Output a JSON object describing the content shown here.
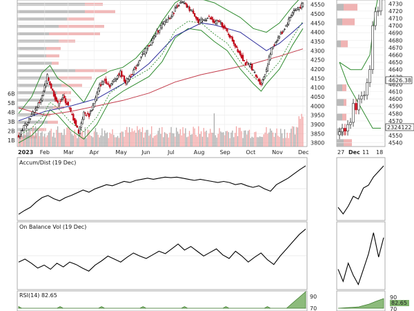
{
  "chart_data": [
    {
      "type": "candlestick",
      "panel": "main-price",
      "x_months": [
        "2023",
        "Feb",
        "Mar",
        "Apr",
        "May",
        "Jun",
        "Jul",
        "Aug",
        "Sep",
        "Oct",
        "Nov",
        "Dec"
      ],
      "y_ticks": [
        3800,
        3850,
        3900,
        3950,
        4000,
        4050,
        4100,
        4150,
        4200,
        4250,
        4300,
        4350,
        4400,
        4450,
        4500,
        4550
      ],
      "ylim": [
        3780,
        4575
      ],
      "volume_ticks": [
        "1B",
        "2B",
        "3B",
        "4B",
        "5B",
        "6B"
      ],
      "close_path": [
        [
          0,
          3840
        ],
        [
          6,
          3910
        ],
        [
          12,
          3970
        ],
        [
          18,
          4050
        ],
        [
          22,
          4160
        ],
        [
          26,
          4080
        ],
        [
          30,
          4010
        ],
        [
          34,
          4050
        ],
        [
          38,
          4000
        ],
        [
          42,
          3930
        ],
        [
          46,
          3860
        ],
        [
          50,
          3960
        ],
        [
          54,
          3950
        ],
        [
          58,
          4020
        ],
        [
          62,
          4110
        ],
        [
          66,
          4140
        ],
        [
          70,
          4110
        ],
        [
          74,
          4150
        ],
        [
          78,
          4180
        ],
        [
          82,
          4130
        ],
        [
          86,
          4170
        ],
        [
          90,
          4210
        ],
        [
          94,
          4270
        ],
        [
          98,
          4310
        ],
        [
          102,
          4350
        ],
        [
          106,
          4400
        ],
        [
          110,
          4440
        ],
        [
          114,
          4470
        ],
        [
          118,
          4500
        ],
        [
          122,
          4550
        ],
        [
          126,
          4560
        ],
        [
          130,
          4530
        ],
        [
          134,
          4510
        ],
        [
          138,
          4450
        ],
        [
          142,
          4470
        ],
        [
          146,
          4480
        ],
        [
          150,
          4450
        ],
        [
          154,
          4460
        ],
        [
          158,
          4420
        ],
        [
          162,
          4380
        ],
        [
          166,
          4330
        ],
        [
          170,
          4280
        ],
        [
          174,
          4230
        ],
        [
          178,
          4220
        ],
        [
          182,
          4160
        ],
        [
          186,
          4120
        ],
        [
          190,
          4200
        ],
        [
          194,
          4310
        ],
        [
          198,
          4360
        ],
        [
          202,
          4400
        ],
        [
          206,
          4450
        ],
        [
          210,
          4510
        ],
        [
          214,
          4530
        ],
        [
          218,
          4550
        ]
      ],
      "sma_50": [
        [
          0,
          3920
        ],
        [
          20,
          3970
        ],
        [
          40,
          4000
        ],
        [
          60,
          4040
        ],
        [
          80,
          4120
        ],
        [
          100,
          4230
        ],
        [
          120,
          4380
        ],
        [
          140,
          4450
        ],
        [
          150,
          4440
        ],
        [
          160,
          4420
        ],
        [
          170,
          4400
        ],
        [
          180,
          4350
        ],
        [
          190,
          4300
        ],
        [
          200,
          4340
        ],
        [
          210,
          4400
        ],
        [
          218,
          4450
        ]
      ],
      "sma_200": [
        [
          0,
          3990
        ],
        [
          20,
          3950
        ],
        [
          40,
          3970
        ],
        [
          60,
          4000
        ],
        [
          80,
          4030
        ],
        [
          100,
          4070
        ],
        [
          120,
          4130
        ],
        [
          140,
          4170
        ],
        [
          160,
          4200
        ],
        [
          180,
          4230
        ],
        [
          200,
          4270
        ],
        [
          218,
          4310
        ]
      ],
      "bollinger_upper": [
        [
          0,
          3960
        ],
        [
          10,
          4050
        ],
        [
          18,
          4180
        ],
        [
          24,
          4220
        ],
        [
          30,
          4150
        ],
        [
          40,
          4100
        ],
        [
          50,
          4020
        ],
        [
          60,
          4150
        ],
        [
          70,
          4190
        ],
        [
          80,
          4210
        ],
        [
          90,
          4260
        ],
        [
          100,
          4340
        ],
        [
          110,
          4460
        ],
        [
          120,
          4560
        ],
        [
          130,
          4600
        ],
        [
          140,
          4580
        ],
        [
          150,
          4560
        ],
        [
          160,
          4520
        ],
        [
          170,
          4480
        ],
        [
          180,
          4420
        ],
        [
          190,
          4400
        ],
        [
          200,
          4450
        ],
        [
          210,
          4540
        ],
        [
          218,
          4600
        ]
      ],
      "bollinger_lower": [
        [
          0,
          3800
        ],
        [
          10,
          3840
        ],
        [
          18,
          3900
        ],
        [
          24,
          3980
        ],
        [
          30,
          3950
        ],
        [
          40,
          3870
        ],
        [
          50,
          3820
        ],
        [
          60,
          3900
        ],
        [
          70,
          4030
        ],
        [
          80,
          4080
        ],
        [
          90,
          4120
        ],
        [
          100,
          4160
        ],
        [
          110,
          4240
        ],
        [
          120,
          4370
        ],
        [
          130,
          4420
        ],
        [
          140,
          4410
        ],
        [
          150,
          4350
        ],
        [
          160,
          4300
        ],
        [
          170,
          4200
        ],
        [
          180,
          4120
        ],
        [
          186,
          4080
        ],
        [
          190,
          4120
        ],
        [
          200,
          4200
        ],
        [
          210,
          4330
        ],
        [
          218,
          4420
        ]
      ]
    },
    {
      "type": "candlestick",
      "panel": "zoom-price",
      "x_labels": [
        "27",
        "Dec",
        "11",
        "18"
      ],
      "y_ticks": [
        4540,
        4550,
        4560,
        4570,
        4580,
        4590,
        4600,
        4610,
        4620,
        4630,
        4640,
        4650,
        4660,
        4670,
        4680,
        4690,
        4700,
        4710,
        4720,
        4730
      ],
      "ylim": [
        4535,
        4735
      ],
      "last_price_label": "4626.38",
      "volume_label": "2324122",
      "close_path": [
        [
          0,
          4555
        ],
        [
          1,
          4560
        ],
        [
          2,
          4556
        ],
        [
          3,
          4565
        ],
        [
          4,
          4568
        ],
        [
          5,
          4594
        ],
        [
          6,
          4585
        ],
        [
          7,
          4600
        ],
        [
          8,
          4604
        ],
        [
          9,
          4605
        ],
        [
          10,
          4622
        ],
        [
          11,
          4640
        ],
        [
          12,
          4700
        ],
        [
          13,
          4719
        ],
        [
          14,
          4720
        ],
        [
          15,
          4740
        ]
      ]
    },
    {
      "type": "line",
      "panel": "accum-dist",
      "title": "Accum/Dist (19 Dec)",
      "values": [
        5,
        12,
        18,
        28,
        36,
        40,
        34,
        30,
        36,
        40,
        45,
        50,
        46,
        52,
        56,
        60,
        58,
        62,
        66,
        64,
        68,
        70,
        72,
        70,
        72,
        74,
        73,
        74,
        72,
        70,
        68,
        70,
        68,
        66,
        64,
        66,
        64,
        60,
        62,
        58,
        55,
        58,
        52,
        48,
        60,
        66,
        72,
        80,
        88,
        95
      ]
    },
    {
      "type": "line",
      "panel": "on-balance-vol",
      "title": "On Balance Vol (19 Dec)",
      "values": [
        40,
        45,
        38,
        30,
        35,
        28,
        38,
        32,
        40,
        36,
        30,
        25,
        35,
        42,
        50,
        45,
        40,
        48,
        55,
        50,
        46,
        52,
        58,
        54,
        62,
        70,
        60,
        66,
        58,
        50,
        56,
        62,
        52,
        46,
        58,
        50,
        40,
        48,
        55,
        44,
        36,
        50,
        62,
        74,
        86,
        95
      ]
    },
    {
      "type": "area",
      "panel": "rsi",
      "title": "RSI(14) 82.65",
      "y_ticks": [
        70,
        90
      ],
      "last_value_label": "82.65"
    }
  ]
}
